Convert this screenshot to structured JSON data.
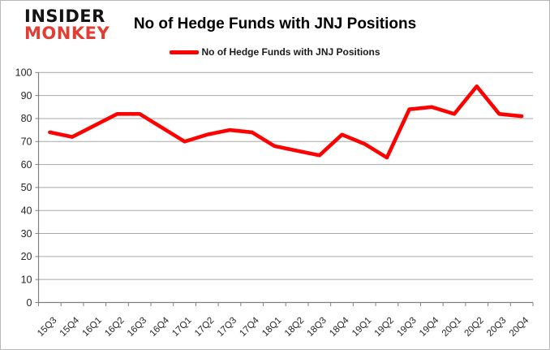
{
  "brand": {
    "line1": "INSIDER",
    "line2": "MONKEY"
  },
  "title": "No of Hedge Funds with JNJ Positions",
  "legend": {
    "label": "No of Hedge Funds with JNJ Positions"
  },
  "colors": {
    "series_line": "#ff0000",
    "legend_key": "#ff0000",
    "logo_black": "#161413",
    "logo_red": "#e23d33",
    "gridline": "#a8a8a8",
    "axis": "#7f7f7f",
    "tick_label": "#262626",
    "frame_glow": "#e81e18"
  },
  "chart_data": {
    "type": "line",
    "title": "No of Hedge Funds with JNJ Positions",
    "categories": [
      "15Q3",
      "15Q4",
      "16Q1",
      "16Q2",
      "16Q3",
      "16Q4",
      "17Q1",
      "17Q2",
      "17Q3",
      "17Q4",
      "18Q1",
      "18Q2",
      "18Q3",
      "18Q4",
      "19Q1",
      "19Q2",
      "19Q3",
      "19Q4",
      "20Q1",
      "20Q2",
      "20Q3",
      "20Q4"
    ],
    "series": [
      {
        "name": "No of Hedge Funds with JNJ Positions",
        "color": "#ff0000",
        "values": [
          74,
          72,
          77,
          82,
          82,
          76,
          70,
          73,
          75,
          74,
          68,
          66,
          64,
          73,
          69,
          63,
          84,
          85,
          82,
          94,
          82,
          81
        ]
      }
    ],
    "xlabel": "",
    "ylabel": "",
    "ylim": [
      0,
      100
    ],
    "ytick_step": 10,
    "y_ticks": [
      0,
      10,
      20,
      30,
      40,
      50,
      60,
      70,
      80,
      90,
      100
    ],
    "grid": true,
    "legend_position": "top"
  }
}
